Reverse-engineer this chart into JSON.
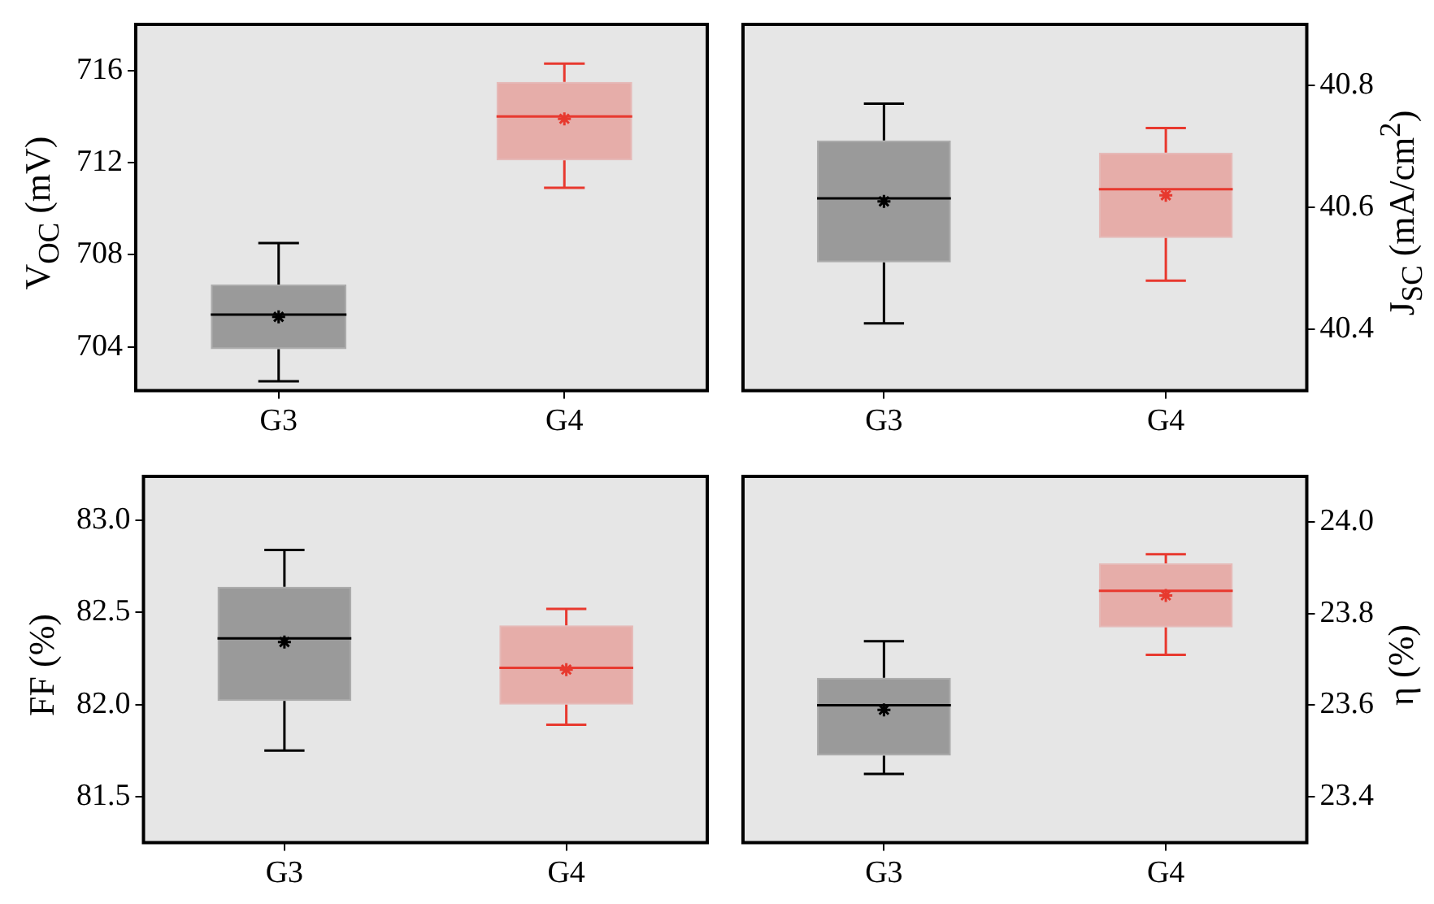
{
  "chart_data": [
    {
      "type": "box",
      "categories": [
        "G3",
        "G4"
      ],
      "ylabel": "V$_{OC}$ (mV)",
      "ylim": [
        702.1,
        718
      ],
      "yticks": [
        704,
        708,
        712,
        716
      ],
      "marker": "star",
      "series": [
        {
          "colors": [
            "#000000",
            "#e8392f"
          ],
          "boxes": [
            {
              "low": 702.5,
              "q1": 703.9,
              "median": 705.4,
              "q3": 706.7,
              "high": 708.5,
              "mean": 705.3
            },
            {
              "low": 710.9,
              "q1": 712.1,
              "median": 714.0,
              "q3": 715.5,
              "high": 716.3,
              "mean": 713.9
            }
          ]
        }
      ]
    },
    {
      "type": "box",
      "categories": [
        "G3",
        "G4"
      ],
      "y2label": "J$_{SC}$ (mA/cm$^{2}$)",
      "y2lim": [
        40.3,
        40.9
      ],
      "y2ticks": [
        40.4,
        40.6,
        40.8
      ],
      "marker": "star",
      "series": [
        {
          "axis": "y2",
          "colors": [
            "#000000",
            "#e8392f"
          ],
          "boxes": [
            {
              "low": 40.41,
              "q1": 40.51,
              "median": 40.615,
              "q3": 40.71,
              "high": 40.77,
              "mean": 40.61
            },
            {
              "low": 40.48,
              "q1": 40.55,
              "median": 40.63,
              "q3": 40.69,
              "high": 40.73,
              "mean": 40.62
            }
          ]
        }
      ]
    },
    {
      "type": "box",
      "categories": [
        "G3",
        "G4"
      ],
      "ylabel": "FF (%)",
      "ylim": [
        81.25,
        83.24
      ],
      "yticks": [
        {
          "value": 81.5,
          "label": "81.5"
        },
        {
          "value": 82,
          "label": "82.0"
        },
        {
          "value": 82.5,
          "label": "82.5"
        },
        {
          "value": 83,
          "label": "83.0"
        }
      ],
      "marker": "star",
      "series": [
        {
          "colors": [
            "#000000",
            "#e8392f"
          ],
          "boxes": [
            {
              "low": 81.75,
              "q1": 82.02,
              "median": 82.36,
              "q3": 82.64,
              "high": 82.84,
              "mean": 82.34
            },
            {
              "low": 81.89,
              "q1": 82.0,
              "median": 82.2,
              "q3": 82.43,
              "high": 82.52,
              "mean": 82.19
            }
          ]
        }
      ]
    },
    {
      "type": "box",
      "categories": [
        "G3",
        "G4"
      ],
      "y2label": "η (%)",
      "y2lim": [
        23.3,
        24.1
      ],
      "y2ticks": [
        23.4,
        23.6,
        23.8,
        {
          "value": 24,
          "label": "24.0"
        }
      ],
      "marker": "star",
      "series": [
        {
          "axis": "y2",
          "colors": [
            "#000000",
            "#e8392f"
          ],
          "boxes": [
            {
              "low": 23.45,
              "q1": 23.49,
              "median": 23.6,
              "q3": 23.66,
              "high": 23.74,
              "mean": 23.59
            },
            {
              "low": 23.71,
              "q1": 23.77,
              "median": 23.85,
              "q3": 23.91,
              "high": 23.93,
              "mean": 23.84
            }
          ]
        }
      ]
    }
  ]
}
